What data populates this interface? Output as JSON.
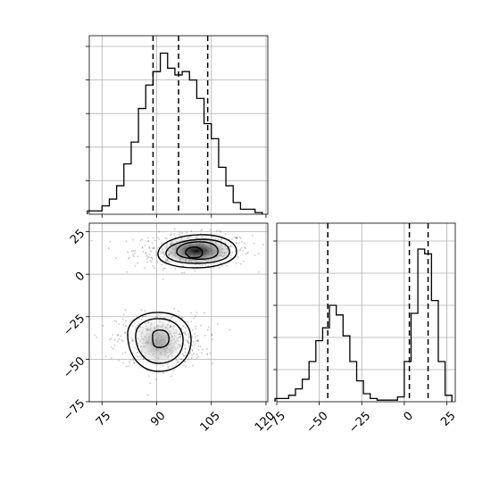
{
  "chart_data": [
    {
      "type": "histogram",
      "panel": "marginal-x",
      "x": [
        72,
        74,
        76,
        78,
        80,
        82,
        84,
        86,
        88,
        90,
        92,
        94,
        96,
        98,
        100,
        102,
        104,
        106,
        108,
        110,
        112,
        114,
        116,
        118
      ],
      "values": [
        0.02,
        0.02,
        0.05,
        0.09,
        0.17,
        0.3,
        0.43,
        0.63,
        0.77,
        0.85,
        0.96,
        0.87,
        0.83,
        0.85,
        0.8,
        0.69,
        0.54,
        0.45,
        0.28,
        0.17,
        0.07,
        0.03,
        0.03,
        0.01
      ],
      "bin_width": 2,
      "quantiles": [
        89,
        96,
        104
      ],
      "xlim": [
        71.5,
        120.5
      ],
      "ylim": [
        0,
        1
      ],
      "grid": true
    },
    {
      "type": "contour",
      "panel": "joint",
      "xlim": [
        71.5,
        120.5
      ],
      "ylim": [
        -75,
        30
      ],
      "x_ticks": [
        "75",
        "90",
        "105",
        "120"
      ],
      "y_ticks": [
        "25",
        "0",
        "−25",
        "−50",
        "−75"
      ],
      "clusters": [
        {
          "center_x": 100,
          "center_y": 14,
          "spread_x": 8,
          "spread_y": 5
        },
        {
          "center_x": 91,
          "center_y": -39,
          "spread_x": 6,
          "spread_y": 8
        }
      ],
      "grid": true
    },
    {
      "type": "histogram",
      "panel": "marginal-y",
      "x": [
        -74,
        -70,
        -66,
        -62,
        -58,
        -54,
        -50,
        -46,
        -42,
        -38,
        -34,
        -30,
        -26,
        -22,
        -18,
        -14,
        -10,
        -6,
        -2,
        2,
        6,
        10,
        14,
        18,
        22,
        26
      ],
      "values": [
        0.02,
        0.02,
        0.04,
        0.08,
        0.14,
        0.25,
        0.38,
        0.46,
        0.6,
        0.54,
        0.41,
        0.25,
        0.13,
        0.05,
        0.02,
        0.01,
        0.01,
        0.01,
        0.03,
        0.25,
        0.55,
        0.95,
        0.92,
        0.63,
        0.25,
        0.04
      ],
      "bin_width": 4,
      "quantiles": [
        -45,
        3,
        14
      ],
      "xlim": [
        -75,
        30
      ],
      "ylim": [
        0,
        1
      ],
      "x_ticks": [
        "−75",
        "−50",
        "−25",
        "0",
        "25"
      ],
      "grid": true
    }
  ]
}
